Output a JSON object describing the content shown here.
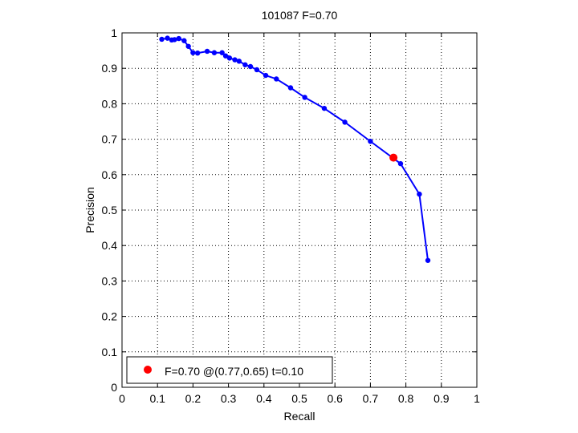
{
  "chart_data": {
    "type": "line",
    "title": "101087 F=0.70",
    "xlabel": "Recall",
    "ylabel": "Precision",
    "xlim": [
      0,
      1
    ],
    "ylim": [
      0,
      1
    ],
    "grid": true,
    "x_ticks": [
      "0",
      "0.1",
      "0.2",
      "0.3",
      "0.4",
      "0.5",
      "0.6",
      "0.7",
      "0.8",
      "0.9",
      "1"
    ],
    "y_ticks": [
      "0",
      "0.1",
      "0.2",
      "0.3",
      "0.4",
      "0.5",
      "0.6",
      "0.7",
      "0.8",
      "0.9",
      "1"
    ],
    "series": [
      {
        "color": "#0000ff",
        "x": [
          0.112,
          0.128,
          0.14,
          0.148,
          0.16,
          0.175,
          0.187,
          0.2,
          0.213,
          0.24,
          0.26,
          0.282,
          0.292,
          0.303,
          0.318,
          0.33,
          0.347,
          0.362,
          0.38,
          0.405,
          0.435,
          0.475,
          0.515,
          0.57,
          0.628,
          0.7,
          0.785,
          0.838,
          0.862
        ],
        "y": [
          0.982,
          0.985,
          0.98,
          0.981,
          0.984,
          0.978,
          0.962,
          0.944,
          0.943,
          0.948,
          0.944,
          0.944,
          0.935,
          0.929,
          0.924,
          0.92,
          0.91,
          0.905,
          0.896,
          0.88,
          0.87,
          0.845,
          0.818,
          0.787,
          0.748,
          0.694,
          0.631,
          0.545,
          0.358
        ]
      }
    ],
    "marker": {
      "x": 0.765,
      "y": 0.648,
      "color": "#ff0000"
    },
    "legend": {
      "position": "bottom-left",
      "label": "F=0.70 @(0.77,0.65) t=0.10"
    }
  }
}
